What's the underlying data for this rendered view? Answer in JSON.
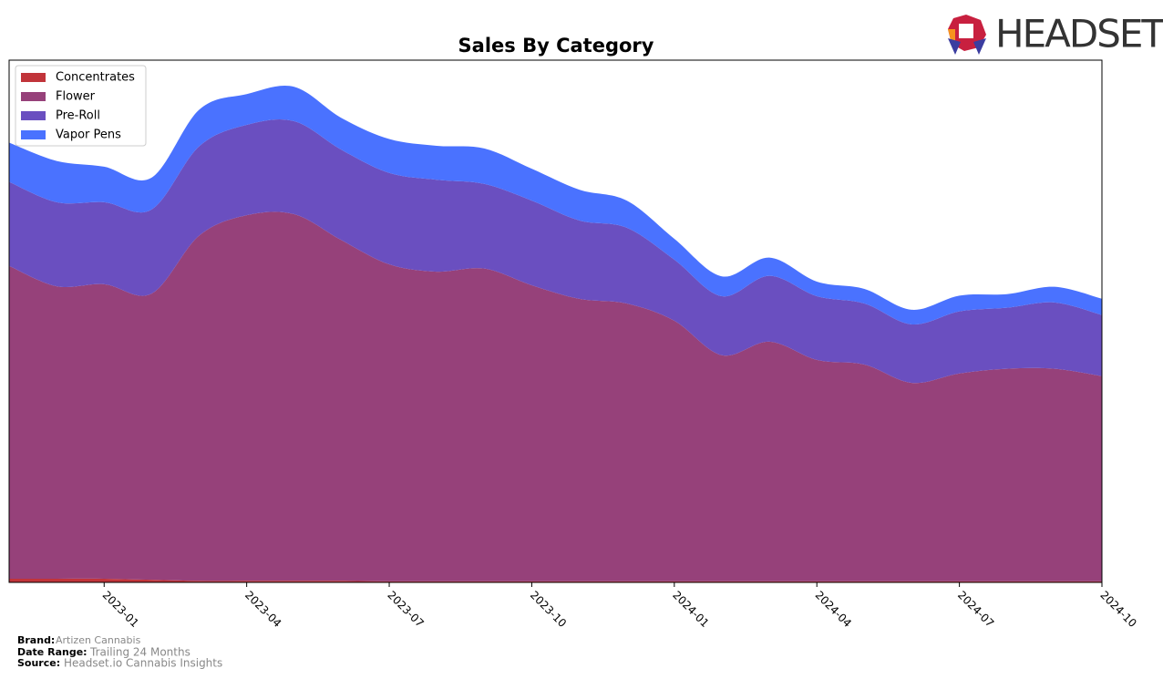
{
  "chart_data": {
    "type": "stacked_area",
    "title": "Sales By Category",
    "x": [
      "2022-11",
      "2022-12",
      "2023-01",
      "2023-02",
      "2023-03",
      "2023-04",
      "2023-05",
      "2023-06",
      "2023-07",
      "2023-08",
      "2023-09",
      "2023-10",
      "2023-11",
      "2023-12",
      "2024-01",
      "2024-02",
      "2024-03",
      "2024-04",
      "2024-05",
      "2024-06",
      "2024-07",
      "2024-08",
      "2024-09",
      "2024-10"
    ],
    "xlim": [
      "2022-11",
      "2024-10"
    ],
    "xticks": [
      "2023-01",
      "2023-04",
      "2023-07",
      "2023-10",
      "2024-01",
      "2024-04",
      "2024-07",
      "2024-10"
    ],
    "ylim": [
      0,
      100
    ],
    "legend": "upper left",
    "series": [
      {
        "name": "Concentrates",
        "color": "#c1343a",
        "values": [
          0.7,
          0.7,
          0.7,
          0.5,
          0.3,
          0.3,
          0.3,
          0.3,
          0.2,
          0.2,
          0.2,
          0.2,
          0.2,
          0.2,
          0.2,
          0.2,
          0.2,
          0.2,
          0.2,
          0.2,
          0.2,
          0.2,
          0.2,
          0.2
        ]
      },
      {
        "name": "Flower",
        "color": "#96417a",
        "values": [
          59.9,
          56.0,
          56.4,
          54.8,
          66.1,
          70.0,
          70.2,
          65.2,
          60.7,
          59.3,
          59.9,
          56.7,
          54.1,
          53.2,
          49.9,
          43.3,
          45.9,
          42.4,
          41.5,
          38.0,
          39.8,
          40.7,
          40.7,
          39.3
        ]
      },
      {
        "name": "Pre-Roll",
        "color": "#6a4fc0",
        "values": [
          16.1,
          16.1,
          15.7,
          16.1,
          17.1,
          17.3,
          17.8,
          17.3,
          17.5,
          17.6,
          16.2,
          16.2,
          15.0,
          14.5,
          11.7,
          11.3,
          12.6,
          12.2,
          11.7,
          11.2,
          11.9,
          11.7,
          12.7,
          11.7
        ]
      },
      {
        "name": "Vapor Pens",
        "color": "#4a72ff",
        "values": [
          7.5,
          7.9,
          6.8,
          6.1,
          7.0,
          5.9,
          6.6,
          6.1,
          6.5,
          6.5,
          6.8,
          6.1,
          5.9,
          5.2,
          4.0,
          3.8,
          3.5,
          2.8,
          2.8,
          2.8,
          3.0,
          2.6,
          3.0,
          3.1
        ]
      }
    ]
  },
  "logo": {
    "text": "HEADSET"
  },
  "footer": {
    "brand_label": "Brand:",
    "brand": "Artizen Cannabis",
    "range_label": "Date Range:",
    "range": "Trailing 24 Months",
    "source_label": "Source:",
    "source": "Headset.io Cannabis Insights"
  }
}
